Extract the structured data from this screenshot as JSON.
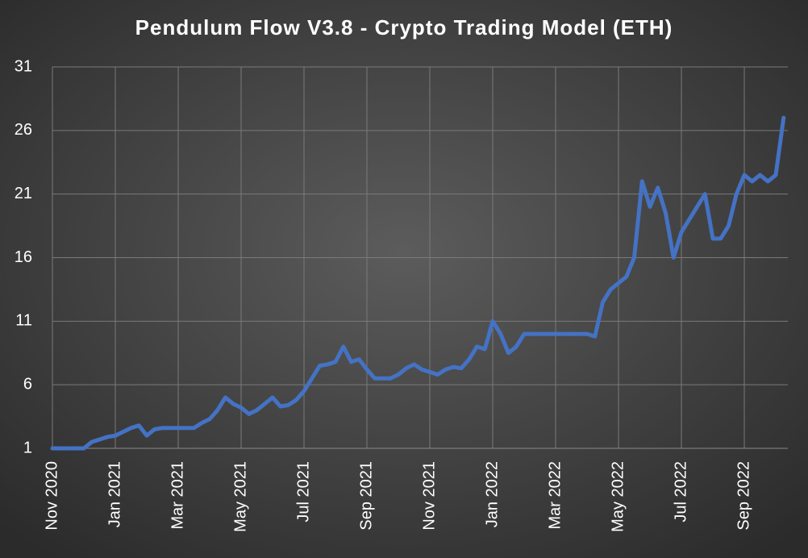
{
  "chart_data": {
    "type": "line",
    "title": "Pendulum Flow V3.8 - Crypto Trading Model (ETH)",
    "categories": [
      "Nov 2020",
      null,
      null,
      null,
      null,
      null,
      null,
      null,
      "Jan 2021",
      null,
      null,
      null,
      null,
      null,
      null,
      null,
      "Mar 2021",
      null,
      null,
      null,
      null,
      null,
      null,
      null,
      "May 2021",
      null,
      null,
      null,
      null,
      null,
      null,
      null,
      "Jul 2021",
      null,
      null,
      null,
      null,
      null,
      null,
      null,
      "Sep 2021",
      null,
      null,
      null,
      null,
      null,
      null,
      null,
      "Nov 2021",
      null,
      null,
      null,
      null,
      null,
      null,
      null,
      "Jan 2022",
      null,
      null,
      null,
      null,
      null,
      null,
      null,
      "Mar 2022",
      null,
      null,
      null,
      null,
      null,
      null,
      null,
      "May 2022",
      null,
      null,
      null,
      null,
      null,
      null,
      null,
      "Jul 2022",
      null,
      null,
      null,
      null,
      null,
      null,
      null,
      "Sep 2022",
      null,
      null,
      null,
      null,
      null
    ],
    "series": [
      {
        "name": "ETH",
        "color": "#4472c4",
        "values": [
          1,
          1,
          1,
          1,
          1,
          1.5,
          1.7,
          1.9,
          2.0,
          2.3,
          2.6,
          2.8,
          2.0,
          2.5,
          2.6,
          2.6,
          2.6,
          2.6,
          2.6,
          3.0,
          3.3,
          4.0,
          5.0,
          4.5,
          4.2,
          3.7,
          4.0,
          4.5,
          5.0,
          4.3,
          4.4,
          4.8,
          5.5,
          6.5,
          7.5,
          7.6,
          7.8,
          9.0,
          7.8,
          8.0,
          7.2,
          6.5,
          6.5,
          6.5,
          6.8,
          7.3,
          7.6,
          7.2,
          7.0,
          6.8,
          7.2,
          7.4,
          7.3,
          8.0,
          9.0,
          8.8,
          11.0,
          10.0,
          8.5,
          9.0,
          10.0,
          10,
          10,
          10,
          10,
          10,
          10,
          10,
          10,
          9.8,
          12.5,
          13.5,
          14.0,
          14.5,
          16.0,
          22.0,
          20.0,
          21.5,
          19.5,
          16.0,
          18.0,
          19.0,
          20.0,
          21.0,
          17.5,
          17.5,
          18.5,
          21.0,
          22.5,
          22.0,
          22.5,
          22.0,
          22.5,
          27.0
        ]
      }
    ],
    "ylim": [
      1,
      31
    ],
    "yticks": [
      1,
      6,
      11,
      16,
      21,
      26,
      31
    ],
    "grid": true
  }
}
